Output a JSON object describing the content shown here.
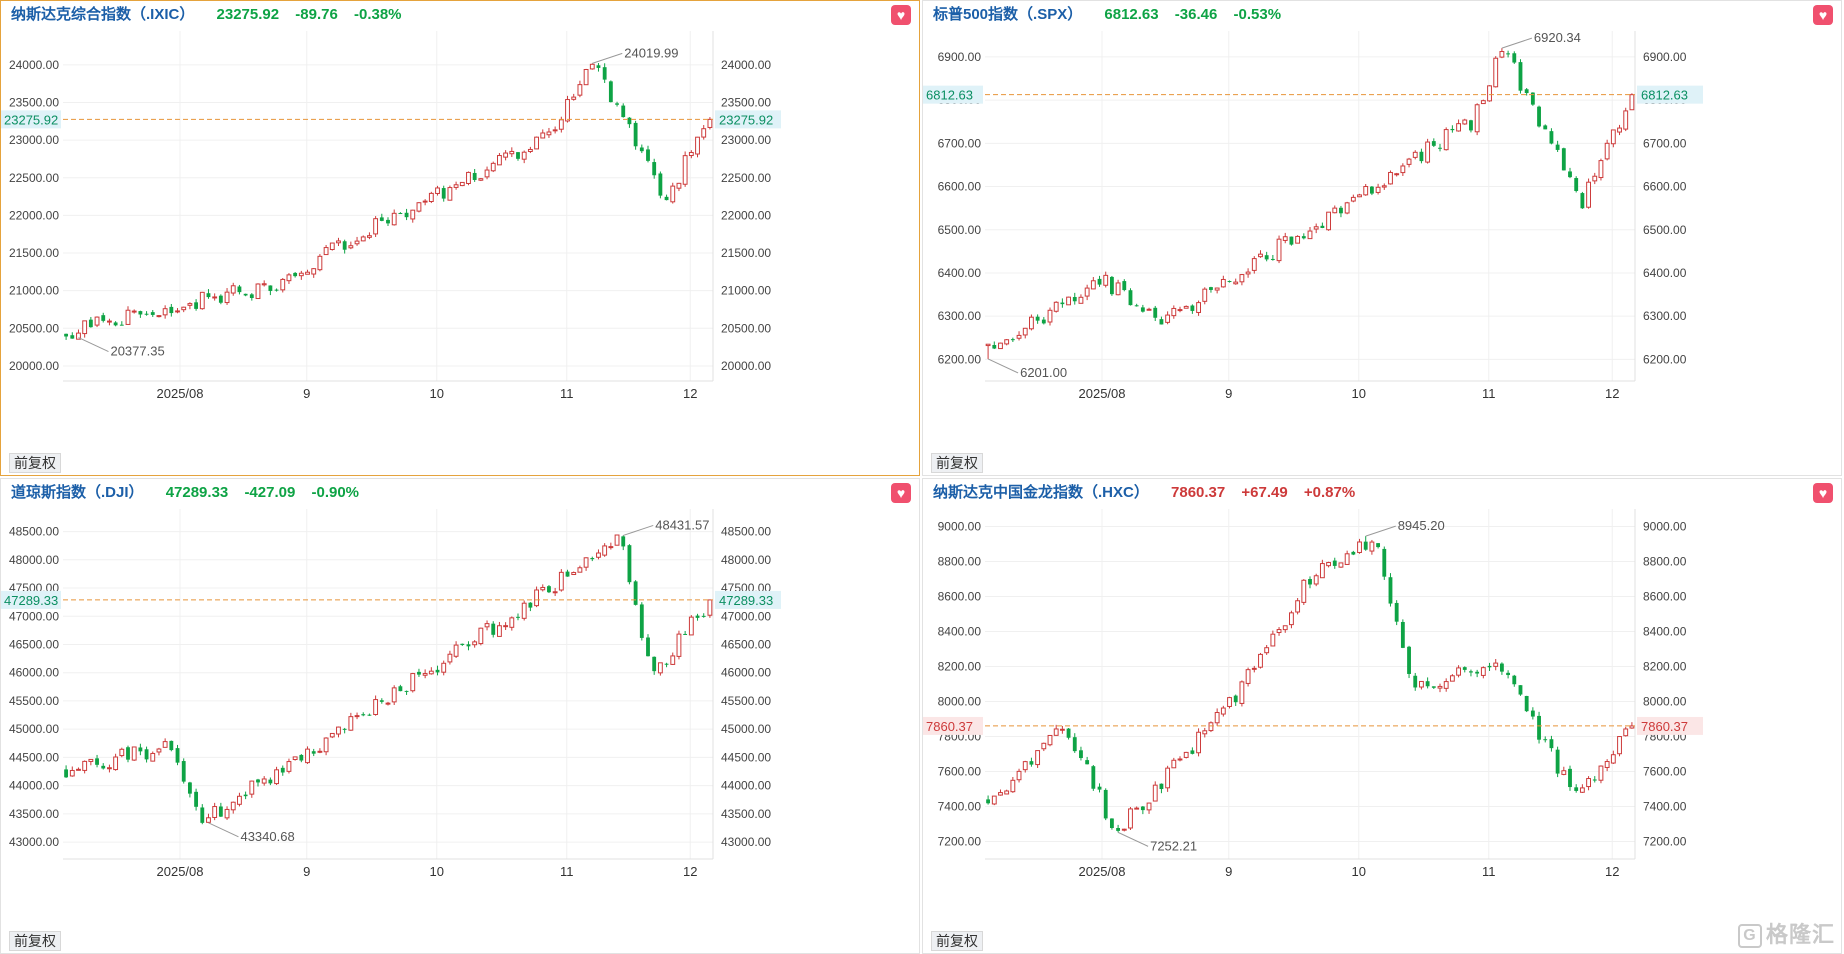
{
  "ui": {
    "adjust_label": "前复权",
    "favorite_icon": "heart-icon",
    "up_color": "#cd3a3a",
    "down_color": "#0ea345",
    "watermark": "格隆汇",
    "watermark_icon": "G"
  },
  "panels": [
    {
      "name": "纳斯达克综合指数（.IXIC）",
      "price": "23275.92",
      "change": "-89.76",
      "pct": "-0.38%",
      "direction": "down",
      "chart_data": {
        "type": "candlestick",
        "x_labels": [
          "2025/08",
          "9",
          "10",
          "11",
          "12"
        ],
        "y_ticks": [
          "20000.00",
          "20500.00",
          "21000.00",
          "21500.00",
          "22000.00",
          "22500.00",
          "23000.00",
          "23500.00",
          "24000.00"
        ],
        "ylim": [
          19800,
          24450
        ],
        "last_price": 23275.92,
        "last_price_label": "23275.92",
        "high": 24019.99,
        "high_label": "24019.99",
        "low": 20377.35,
        "low_label": "20377.35",
        "start_price": 20450,
        "end_price": 23275.92,
        "path_fractions": [
          0,
          0.33,
          0.46,
          0.75,
          0.82,
          0.93,
          1
        ],
        "path_values": [
          20450,
          21100,
          21750,
          23050,
          24019.99,
          22200,
          23275.92
        ]
      }
    },
    {
      "name": "标普500指数（.SPX）",
      "price": "6812.63",
      "change": "-36.46",
      "pct": "-0.53%",
      "direction": "down",
      "chart_data": {
        "type": "candlestick",
        "x_labels": [
          "2025/08",
          "9",
          "10",
          "11",
          "12"
        ],
        "y_ticks": [
          "6200.00",
          "6300.00",
          "6400.00",
          "6500.00",
          "6600.00",
          "6700.00",
          "6800.00",
          "6900.00"
        ],
        "ylim": [
          6150,
          6960
        ],
        "last_price": 6812.63,
        "last_price_label": "6812.63",
        "high": 6920.34,
        "high_label": "6920.34",
        "low": 6201.0,
        "low_label": "6201.00",
        "start_price": 6230,
        "end_price": 6812.63,
        "path_fractions": [
          0,
          0.18,
          0.28,
          0.75,
          0.8,
          0.92,
          1
        ],
        "path_values": [
          6230,
          6380,
          6290,
          6750,
          6920.34,
          6560,
          6812.63
        ]
      }
    },
    {
      "name": "道琼斯指数（.DJI）",
      "price": "47289.33",
      "change": "-427.09",
      "pct": "-0.90%",
      "direction": "down",
      "chart_data": {
        "type": "candlestick",
        "x_labels": [
          "2025/08",
          "9",
          "10",
          "11",
          "12"
        ],
        "y_ticks": [
          "43000.00",
          "43500.00",
          "44000.00",
          "44500.00",
          "45000.00",
          "45500.00",
          "46000.00",
          "46500.00",
          "47000.00",
          "47500.00",
          "48000.00",
          "48500.00"
        ],
        "ylim": [
          42700,
          48900
        ],
        "last_price": 47289.33,
        "last_price_label": "47289.33",
        "high": 48431.57,
        "high_label": "48431.57",
        "low": 43340.68,
        "low_label": "43340.68",
        "start_price": 44300,
        "end_price": 47289.33,
        "path_fractions": [
          0,
          0.16,
          0.21,
          0.6,
          0.75,
          0.86,
          0.91,
          1
        ],
        "path_values": [
          44300,
          44700,
          43340.68,
          46300,
          47500,
          48431.57,
          45900,
          47289.33
        ]
      }
    },
    {
      "name": "纳斯达克中国金龙指数（.HXC）",
      "price": "7860.37",
      "change": "+67.49",
      "pct": "+0.87%",
      "direction": "up",
      "chart_data": {
        "type": "candlestick",
        "x_labels": [
          "2025/08",
          "9",
          "10",
          "11",
          "12"
        ],
        "y_ticks": [
          "7200.00",
          "7400.00",
          "7600.00",
          "7800.00",
          "8000.00",
          "8200.00",
          "8400.00",
          "8600.00",
          "8800.00",
          "9000.00"
        ],
        "ylim": [
          7100,
          9100
        ],
        "last_price": 7860.37,
        "last_price_label": "7860.37",
        "high": 8945.2,
        "high_label": "8945.20",
        "low": 7252.21,
        "low_label": "7252.21",
        "start_price": 7430,
        "end_price": 7860.37,
        "path_fractions": [
          0,
          0.12,
          0.2,
          0.38,
          0.5,
          0.6,
          0.66,
          0.8,
          0.91,
          1
        ],
        "path_values": [
          7430,
          7850,
          7252.21,
          8000,
          8700,
          8945.2,
          8100,
          8200,
          7450,
          7860.37
        ]
      }
    }
  ]
}
